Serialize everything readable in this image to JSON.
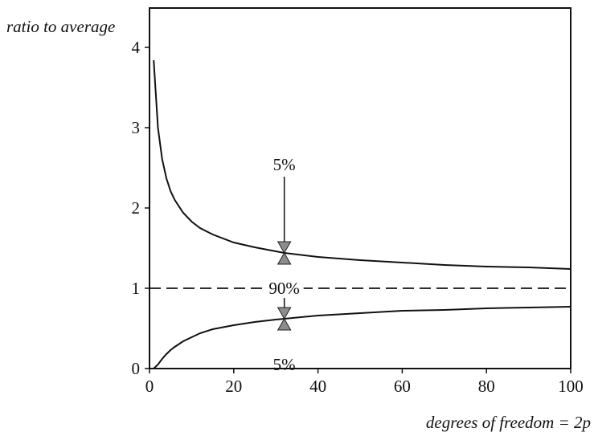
{
  "chart_data": {
    "type": "line",
    "ylabel": "ratio to average",
    "xlabel": "degrees of freedom = 2p",
    "xlim": [
      0,
      100
    ],
    "ylim": [
      0,
      4.5
    ],
    "x_ticks": [
      0,
      20,
      40,
      60,
      80,
      100
    ],
    "x_tick_labels": [
      "0",
      "20",
      "40",
      "60",
      "80",
      "100"
    ],
    "y_ticks": [
      0,
      1,
      2,
      3,
      4
    ],
    "y_tick_labels": [
      "0",
      "1",
      "2",
      "3",
      "4"
    ],
    "grid": false,
    "series": [
      {
        "style": "solid",
        "points": [
          [
            1,
            3.84
          ],
          [
            2,
            3.0
          ],
          [
            3,
            2.61
          ],
          [
            4,
            2.37
          ],
          [
            5,
            2.21
          ],
          [
            6,
            2.1
          ],
          [
            8,
            1.94
          ],
          [
            10,
            1.83
          ],
          [
            12,
            1.75
          ],
          [
            15,
            1.67
          ],
          [
            20,
            1.57
          ],
          [
            25,
            1.51
          ],
          [
            30,
            1.46
          ],
          [
            32,
            1.44
          ],
          [
            40,
            1.39
          ],
          [
            50,
            1.35
          ],
          [
            60,
            1.32
          ],
          [
            70,
            1.29
          ],
          [
            80,
            1.27
          ],
          [
            90,
            1.26
          ],
          [
            100,
            1.24
          ]
        ]
      },
      {
        "style": "solid",
        "points": [
          [
            1,
            0.0
          ],
          [
            2,
            0.05
          ],
          [
            3,
            0.12
          ],
          [
            4,
            0.18
          ],
          [
            5,
            0.23
          ],
          [
            6,
            0.27
          ],
          [
            8,
            0.34
          ],
          [
            10,
            0.39
          ],
          [
            12,
            0.44
          ],
          [
            15,
            0.49
          ],
          [
            20,
            0.54
          ],
          [
            25,
            0.58
          ],
          [
            30,
            0.61
          ],
          [
            32,
            0.62
          ],
          [
            40,
            0.66
          ],
          [
            50,
            0.69
          ],
          [
            60,
            0.72
          ],
          [
            70,
            0.73
          ],
          [
            80,
            0.75
          ],
          [
            90,
            0.76
          ],
          [
            100,
            0.77
          ]
        ]
      },
      {
        "style": "dashed",
        "points": [
          [
            0,
            1
          ],
          [
            100,
            1
          ]
        ]
      }
    ],
    "annotations": [
      {
        "text": "5%",
        "x": 32,
        "y": 2.35,
        "arrow_to": 1.44,
        "direction": "down"
      },
      {
        "text": "90%",
        "x": 32,
        "y": 1.0
      },
      {
        "text": "5%",
        "x": 32,
        "y": 0.22,
        "arrow_to": 0.62,
        "direction": "up"
      }
    ]
  }
}
